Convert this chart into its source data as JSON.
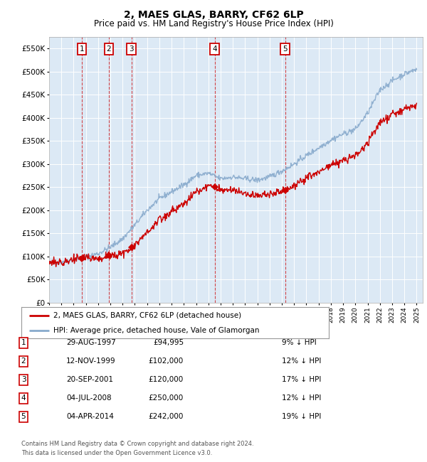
{
  "title": "2, MAES GLAS, BARRY, CF62 6LP",
  "subtitle": "Price paid vs. HM Land Registry's House Price Index (HPI)",
  "sales": [
    {
      "label": "1",
      "date_str": "29-AUG-1997",
      "year": 1997.66,
      "price": 94995
    },
    {
      "label": "2",
      "date_str": "12-NOV-1999",
      "year": 1999.87,
      "price": 102000
    },
    {
      "label": "3",
      "date_str": "20-SEP-2001",
      "year": 2001.72,
      "price": 120000
    },
    {
      "label": "4",
      "date_str": "04-JUL-2008",
      "year": 2008.51,
      "price": 250000
    },
    {
      "label": "5",
      "date_str": "04-APR-2014",
      "year": 2014.26,
      "price": 242000
    }
  ],
  "table_rows": [
    {
      "num": "1",
      "date": "29-AUG-1997",
      "price": "£94,995",
      "hpi": "9% ↓ HPI"
    },
    {
      "num": "2",
      "date": "12-NOV-1999",
      "price": "£102,000",
      "hpi": "12% ↓ HPI"
    },
    {
      "num": "3",
      "date": "20-SEP-2001",
      "price": "£120,000",
      "hpi": "17% ↓ HPI"
    },
    {
      "num": "4",
      "date": "04-JUL-2008",
      "price": "£250,000",
      "hpi": "12% ↓ HPI"
    },
    {
      "num": "5",
      "date": "04-APR-2014",
      "price": "£242,000",
      "hpi": "19% ↓ HPI"
    }
  ],
  "legend_house": "2, MAES GLAS, BARRY, CF62 6LP (detached house)",
  "legend_hpi": "HPI: Average price, detached house, Vale of Glamorgan",
  "footer": "Contains HM Land Registry data © Crown copyright and database right 2024.\nThis data is licensed under the Open Government Licence v3.0.",
  "house_color": "#cc0000",
  "hpi_color": "#88aacc",
  "ylim": [
    0,
    575000
  ],
  "xlim_start": 1995.0,
  "xlim_end": 2025.5,
  "background_color": "#ffffff",
  "plot_bg_color": "#dce9f5"
}
